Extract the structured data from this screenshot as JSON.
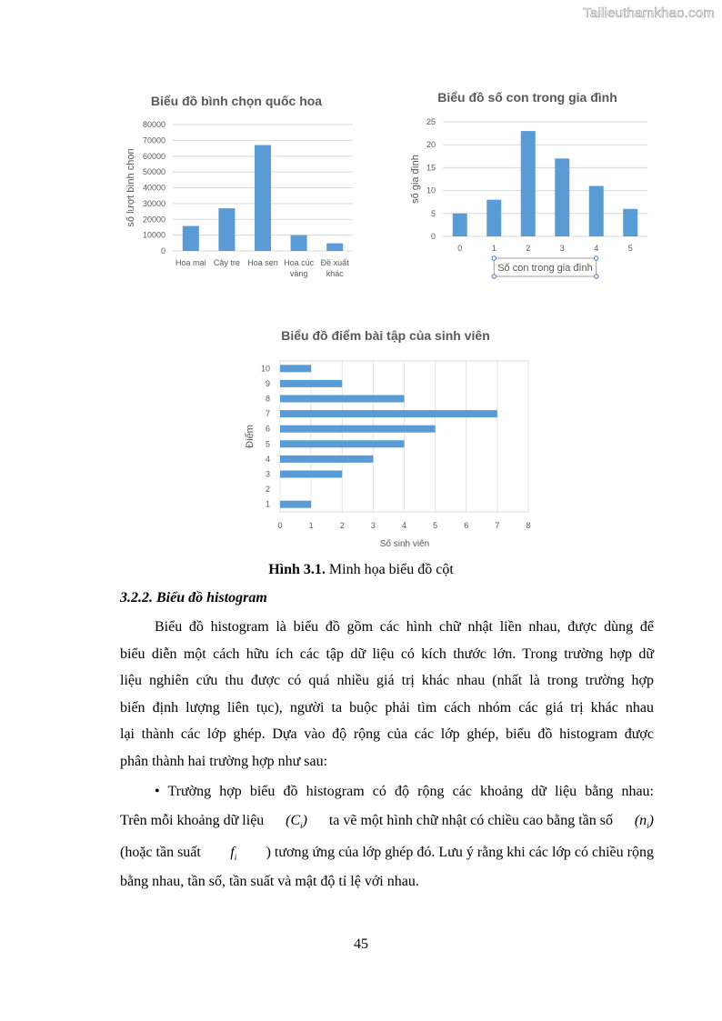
{
  "watermark": "Tailieuthamkhao.com",
  "chart_data": [
    {
      "type": "bar",
      "title": "Biểu đồ bình chọn quốc hoa",
      "xlabel": "",
      "ylabel": "số lượt bình chọn",
      "categories": [
        "Hoa mai",
        "Cây tre",
        "Hoa sen",
        "Hoa cúc vàng",
        "Đề xuất khác"
      ],
      "category_lines": [
        [
          "Hoa mai"
        ],
        [
          "Cây tre"
        ],
        [
          "Hoa sen"
        ],
        [
          "Hoa cúc",
          "vàng"
        ],
        [
          "Đề xuất",
          "khác"
        ]
      ],
      "values": [
        15800,
        27000,
        67000,
        10000,
        4800
      ],
      "ylim": [
        0,
        80000
      ],
      "yticks": [
        0,
        10000,
        20000,
        30000,
        40000,
        50000,
        60000,
        70000,
        80000
      ],
      "grid": true,
      "color": "#5b9bd5"
    },
    {
      "type": "bar",
      "title": "Biểu đồ số con trong gia đình",
      "xlabel": "Số con trong gia đình",
      "ylabel": "số gia đình",
      "categories": [
        "0",
        "1",
        "2",
        "3",
        "4",
        "5"
      ],
      "values": [
        5,
        8,
        23,
        17,
        11,
        6
      ],
      "ylim": [
        0,
        25
      ],
      "yticks": [
        0,
        5,
        10,
        15,
        20,
        25
      ],
      "grid": true,
      "color": "#5b9bd5"
    },
    {
      "type": "bar",
      "orientation": "horizontal",
      "title": "Biểu đồ điểm bài tập của sinh viên",
      "xlabel": "Số sinh viên",
      "ylabel": "Điểm",
      "categories": [
        "1",
        "2",
        "3",
        "4",
        "5",
        "6",
        "7",
        "8",
        "9",
        "10"
      ],
      "values": [
        1,
        0,
        2,
        3,
        4,
        5,
        7,
        4,
        2,
        1
      ],
      "xlim": [
        0,
        8
      ],
      "xticks": [
        0,
        1,
        2,
        3,
        4,
        5,
        6,
        7,
        8
      ],
      "grid": true,
      "color": "#5b9bd5"
    }
  ],
  "caption": {
    "bold": "Hình 3.1.",
    "text": " Minh họa biểu đồ cột"
  },
  "heading": "3.2.2. Biểu đồ histogram",
  "para1": [
    "Biểu đồ histogram là biểu đồ gồm các hình chữ nhật liền nhau, được dùng để",
    "biểu diễn một cách hữu ích các tập dữ liệu có kích thước lớn. Trong trường hợp dữ",
    "liệu nghiên cứu thu được có quá nhiều giá trị khác nhau (nhất là trong trường hợp",
    "biến định lượng liên tục), người ta buộc phải tìm cách nhóm các giá trị khác nhau",
    "lại thành các lớp ghép. Dựa vào độ rộng của các lớp ghép, biểu đồ histogram được",
    "phân thành hai trường hợp như sau:"
  ],
  "para2": {
    "line1": "• Trường hợp biểu đồ histogram có độ rộng các khoảng dữ liệu bằng nhau:",
    "line2a": "Trên mỗi khoảng dữ liệu",
    "ci": "C",
    "sub_i": "i",
    "line2b": "ta vẽ một hình chữ nhật có chiều cao bằng tần số",
    "ni": "n",
    "line3a": "(hoặc tần suất",
    "fi": "f",
    "line3b": ") tương ứng của lớp ghép đó. Lưu ý rằng khi các lớp có chiều rộng",
    "line4": "bằng nhau, tần số, tần suất và mật độ tỉ lệ với nhau."
  },
  "page_number": "45"
}
